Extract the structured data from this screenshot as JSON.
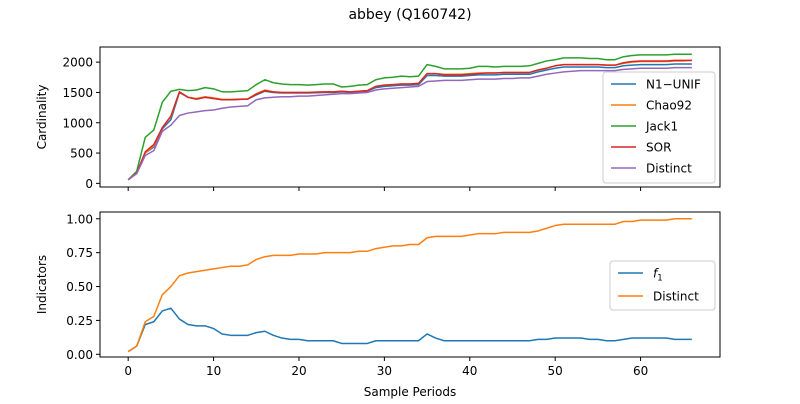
{
  "title": "abbey (Q160742)",
  "colors": {
    "blue": "#1f77b4",
    "orange": "#ff7f0e",
    "green": "#2ca02c",
    "red": "#d62728",
    "purple": "#9467bd"
  },
  "chart_data": [
    {
      "type": "line",
      "xlabel": "",
      "ylabel": "Cardinality",
      "xlim": [
        -3.3,
        69.3
      ],
      "ylim": [
        -60,
        2250
      ],
      "yticks": [
        0,
        500,
        1000,
        1500,
        2000
      ],
      "xticks": [
        0,
        10,
        20,
        30,
        40,
        50,
        60
      ],
      "show_xtick_labels": false,
      "legend": "right",
      "grid": false,
      "x": [
        0,
        1,
        2,
        3,
        4,
        5,
        6,
        7,
        8,
        9,
        10,
        11,
        12,
        13,
        14,
        15,
        16,
        17,
        18,
        19,
        20,
        21,
        22,
        23,
        24,
        25,
        26,
        27,
        28,
        29,
        30,
        31,
        32,
        33,
        34,
        35,
        36,
        37,
        38,
        39,
        40,
        41,
        42,
        43,
        44,
        45,
        46,
        47,
        48,
        49,
        50,
        51,
        52,
        53,
        54,
        55,
        56,
        57,
        58,
        59,
        60,
        61,
        62,
        63,
        64,
        65,
        66
      ],
      "series": [
        {
          "name": "N1−UNIF",
          "color": "#1f77b4",
          "values": [
            60,
            170,
            500,
            600,
            900,
            1050,
            1500,
            1420,
            1390,
            1420,
            1400,
            1380,
            1380,
            1385,
            1390,
            1460,
            1520,
            1500,
            1490,
            1490,
            1490,
            1490,
            1495,
            1500,
            1500,
            1510,
            1500,
            1510,
            1520,
            1580,
            1600,
            1610,
            1620,
            1620,
            1630,
            1780,
            1780,
            1770,
            1770,
            1770,
            1780,
            1790,
            1790,
            1790,
            1800,
            1800,
            1800,
            1800,
            1840,
            1870,
            1900,
            1920,
            1920,
            1920,
            1920,
            1920,
            1910,
            1910,
            1940,
            1950,
            1960,
            1960,
            1960,
            1960,
            1970,
            1970,
            1970
          ]
        },
        {
          "name": "Chao92",
          "color": "#ff7f0e",
          "values": [
            60,
            170,
            500,
            620,
            920,
            1100,
            1510,
            1420,
            1400,
            1430,
            1410,
            1385,
            1385,
            1390,
            1395,
            1480,
            1540,
            1510,
            1500,
            1500,
            1500,
            1500,
            1505,
            1510,
            1510,
            1520,
            1510,
            1520,
            1530,
            1600,
            1620,
            1630,
            1640,
            1640,
            1650,
            1810,
            1810,
            1800,
            1800,
            1800,
            1810,
            1820,
            1820,
            1820,
            1830,
            1830,
            1830,
            1830,
            1870,
            1900,
            1940,
            1960,
            1960,
            1960,
            1960,
            1960,
            1950,
            1950,
            1980,
            2000,
            2010,
            2010,
            2010,
            2010,
            2020,
            2020,
            2030
          ]
        },
        {
          "name": "Jack1",
          "color": "#2ca02c",
          "values": [
            60,
            200,
            760,
            880,
            1340,
            1520,
            1550,
            1530,
            1540,
            1580,
            1560,
            1510,
            1510,
            1520,
            1530,
            1630,
            1710,
            1660,
            1640,
            1630,
            1630,
            1620,
            1630,
            1640,
            1640,
            1590,
            1600,
            1620,
            1630,
            1710,
            1740,
            1750,
            1770,
            1760,
            1770,
            1960,
            1930,
            1890,
            1890,
            1890,
            1900,
            1930,
            1930,
            1920,
            1930,
            1930,
            1930,
            1940,
            1980,
            2020,
            2040,
            2070,
            2070,
            2070,
            2060,
            2060,
            2040,
            2040,
            2090,
            2110,
            2120,
            2120,
            2120,
            2120,
            2130,
            2130,
            2130
          ]
        },
        {
          "name": "SOR",
          "color": "#d62728",
          "values": [
            60,
            170,
            520,
            640,
            920,
            1110,
            1510,
            1420,
            1390,
            1420,
            1400,
            1380,
            1380,
            1385,
            1390,
            1470,
            1530,
            1510,
            1500,
            1500,
            1500,
            1500,
            1505,
            1510,
            1510,
            1520,
            1510,
            1520,
            1530,
            1600,
            1620,
            1630,
            1640,
            1640,
            1650,
            1810,
            1810,
            1790,
            1790,
            1790,
            1800,
            1810,
            1820,
            1820,
            1830,
            1830,
            1830,
            1830,
            1870,
            1900,
            1940,
            1960,
            1960,
            1960,
            1960,
            1960,
            1950,
            1950,
            1990,
            2010,
            2020,
            2020,
            2020,
            2020,
            2030,
            2030,
            2030
          ]
        },
        {
          "name": "Distinct",
          "color": "#9467bd",
          "values": [
            60,
            160,
            460,
            540,
            860,
            960,
            1120,
            1160,
            1180,
            1200,
            1210,
            1240,
            1260,
            1270,
            1280,
            1380,
            1410,
            1420,
            1430,
            1430,
            1440,
            1440,
            1450,
            1460,
            1470,
            1480,
            1480,
            1490,
            1500,
            1540,
            1560,
            1570,
            1580,
            1590,
            1600,
            1680,
            1690,
            1700,
            1700,
            1700,
            1710,
            1720,
            1720,
            1720,
            1730,
            1730,
            1740,
            1740,
            1770,
            1800,
            1820,
            1840,
            1850,
            1860,
            1860,
            1860,
            1860,
            1860,
            1880,
            1890,
            1900,
            1900,
            1900,
            1900,
            1910,
            1910,
            1910
          ]
        }
      ]
    },
    {
      "type": "line",
      "xlabel": "Sample Periods",
      "ylabel": "Indicators",
      "xlim": [
        -3.3,
        69.3
      ],
      "ylim": [
        -0.02,
        1.05
      ],
      "yticks": [
        0.0,
        0.25,
        0.5,
        0.75,
        1.0
      ],
      "ytick_labels": [
        "0.00",
        "0.25",
        "0.50",
        "0.75",
        "1.00"
      ],
      "xticks": [
        0,
        10,
        20,
        30,
        40,
        50,
        60
      ],
      "show_xtick_labels": true,
      "legend": "right",
      "grid": false,
      "x": [
        0,
        1,
        2,
        3,
        4,
        5,
        6,
        7,
        8,
        9,
        10,
        11,
        12,
        13,
        14,
        15,
        16,
        17,
        18,
        19,
        20,
        21,
        22,
        23,
        24,
        25,
        26,
        27,
        28,
        29,
        30,
        31,
        32,
        33,
        34,
        35,
        36,
        37,
        38,
        39,
        40,
        41,
        42,
        43,
        44,
        45,
        46,
        47,
        48,
        49,
        50,
        51,
        52,
        53,
        54,
        55,
        56,
        57,
        58,
        59,
        60,
        61,
        62,
        63,
        64,
        65,
        66
      ],
      "series": [
        {
          "name": "f_1",
          "legend_label": "f",
          "legend_sub": "1",
          "color": "#1f77b4",
          "values": [
            0.02,
            0.06,
            0.22,
            0.24,
            0.32,
            0.34,
            0.26,
            0.22,
            0.21,
            0.21,
            0.19,
            0.15,
            0.14,
            0.14,
            0.14,
            0.16,
            0.17,
            0.14,
            0.12,
            0.11,
            0.11,
            0.1,
            0.1,
            0.1,
            0.1,
            0.08,
            0.08,
            0.08,
            0.08,
            0.1,
            0.1,
            0.1,
            0.1,
            0.1,
            0.1,
            0.15,
            0.12,
            0.1,
            0.1,
            0.1,
            0.1,
            0.1,
            0.1,
            0.1,
            0.1,
            0.1,
            0.1,
            0.1,
            0.11,
            0.11,
            0.12,
            0.12,
            0.12,
            0.12,
            0.11,
            0.11,
            0.1,
            0.1,
            0.11,
            0.12,
            0.12,
            0.12,
            0.12,
            0.12,
            0.11,
            0.11,
            0.11
          ]
        },
        {
          "name": "Distinct",
          "color": "#ff7f0e",
          "values": [
            0.02,
            0.06,
            0.24,
            0.28,
            0.44,
            0.5,
            0.58,
            0.6,
            0.61,
            0.62,
            0.63,
            0.64,
            0.65,
            0.65,
            0.66,
            0.7,
            0.72,
            0.73,
            0.73,
            0.73,
            0.74,
            0.74,
            0.74,
            0.75,
            0.75,
            0.75,
            0.75,
            0.76,
            0.76,
            0.78,
            0.79,
            0.8,
            0.8,
            0.81,
            0.81,
            0.86,
            0.87,
            0.87,
            0.87,
            0.87,
            0.88,
            0.89,
            0.89,
            0.89,
            0.9,
            0.9,
            0.9,
            0.9,
            0.91,
            0.93,
            0.95,
            0.96,
            0.96,
            0.96,
            0.96,
            0.96,
            0.96,
            0.96,
            0.98,
            0.98,
            0.99,
            0.99,
            0.99,
            0.99,
            1.0,
            1.0,
            1.0
          ]
        }
      ]
    }
  ]
}
